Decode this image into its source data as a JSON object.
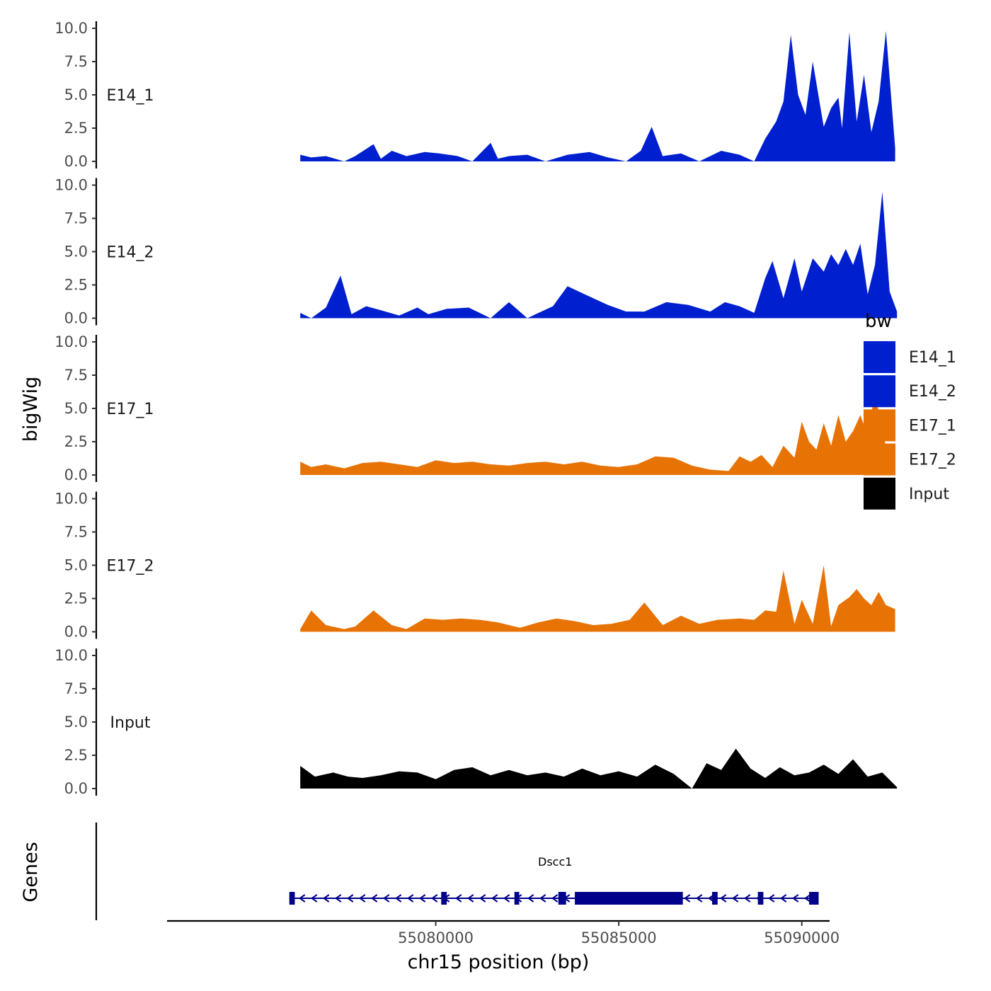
{
  "chart_data": {
    "type": "area",
    "ylabel": "bigWig",
    "xlabel": "chr15 position (bp)",
    "xlim": [
      55072660,
      55090760
    ],
    "data_range": [
      55076300,
      55092550
    ],
    "ylim": [
      0,
      10
    ],
    "yticks": [
      0,
      2.5,
      5,
      7.5,
      10
    ],
    "ytick_labels": [
      "0.0",
      "2.5",
      "5.0",
      "7.5",
      "10.0"
    ],
    "xticks": [
      55080000,
      55085000,
      55090000
    ],
    "xtick_labels": [
      "55080000",
      "55085000",
      "55090000"
    ],
    "tracks": [
      {
        "name": "E14_1",
        "color": "#0020D0",
        "x": [
          55076300,
          55076600,
          55077000,
          55077500,
          55077800,
          55078300,
          55078500,
          55078800,
          55079200,
          55079700,
          55080100,
          55080600,
          55081000,
          55081500,
          55081700,
          55082000,
          55082500,
          55083000,
          55083600,
          55084200,
          55084700,
          55085200,
          55085600,
          55085900,
          55086200,
          55086700,
          55087200,
          55087800,
          55088300,
          55088700,
          55089000,
          55089300,
          55089500,
          55089700,
          55089900,
          55090100,
          55090300,
          55090600,
          55090800,
          55091000,
          55091100,
          55091300,
          55091500,
          55091700,
          55091900,
          55092100,
          55092300,
          55092550
        ],
        "values": [
          0.5,
          0.3,
          0.4,
          0.0,
          0.4,
          1.3,
          0.2,
          0.8,
          0.4,
          0.7,
          0.6,
          0.4,
          0.0,
          1.4,
          0.2,
          0.4,
          0.5,
          0.0,
          0.5,
          0.7,
          0.3,
          0.0,
          0.8,
          2.6,
          0.4,
          0.6,
          0.0,
          0.8,
          0.5,
          0.0,
          1.7,
          3.0,
          4.5,
          9.5,
          5.0,
          3.5,
          7.5,
          2.6,
          4.0,
          4.8,
          2.5,
          9.7,
          3.0,
          6.5,
          2.2,
          4.5,
          9.8,
          1.0
        ]
      },
      {
        "name": "E14_2",
        "color": "#0020D0",
        "x": [
          55076300,
          55076600,
          55077000,
          55077400,
          55077700,
          55078100,
          55078500,
          55079000,
          55079500,
          55079800,
          55080300,
          55080900,
          55081500,
          55082000,
          55082500,
          55083200,
          55083600,
          55084300,
          55084700,
          55085200,
          55085700,
          55086300,
          55086900,
          55087500,
          55087900,
          55088300,
          55088700,
          55089000,
          55089200,
          55089500,
          55089800,
          55090000,
          55090300,
          55090600,
          55090800,
          55091000,
          55091200,
          55091400,
          55091600,
          55091800,
          55092000,
          55092200,
          55092400,
          55092600
        ],
        "values": [
          0.4,
          0.0,
          0.8,
          3.2,
          0.3,
          0.9,
          0.6,
          0.2,
          0.8,
          0.3,
          0.7,
          0.8,
          0.0,
          1.2,
          0.0,
          0.9,
          2.4,
          1.5,
          1.0,
          0.5,
          0.5,
          1.2,
          1.0,
          0.5,
          1.2,
          0.9,
          0.4,
          3.0,
          4.3,
          1.5,
          4.5,
          2.0,
          4.5,
          3.5,
          4.8,
          4.0,
          5.2,
          4.0,
          5.6,
          1.8,
          4.0,
          9.5,
          2.0,
          0.5
        ]
      },
      {
        "name": "E17_1",
        "color": "#E87305",
        "x": [
          55076300,
          55076600,
          55077000,
          55077500,
          55078000,
          55078500,
          55079000,
          55079500,
          55080000,
          55080500,
          55081000,
          55081500,
          55082000,
          55082500,
          55083000,
          55083500,
          55084000,
          55084500,
          55085000,
          55085500,
          55086000,
          55086500,
          55087000,
          55087500,
          55088000,
          55088300,
          55088600,
          55088900,
          55089200,
          55089500,
          55089800,
          55090000,
          55090200,
          55090400,
          55090600,
          55090800,
          55091000,
          55091200,
          55091400,
          55091600,
          55091800,
          55092000,
          55092200,
          55092400,
          55092550
        ],
        "values": [
          1.0,
          0.6,
          0.8,
          0.5,
          0.9,
          1.0,
          0.8,
          0.6,
          1.1,
          0.9,
          1.0,
          0.8,
          0.7,
          0.9,
          1.0,
          0.8,
          1.0,
          0.7,
          0.6,
          0.8,
          1.4,
          1.3,
          0.7,
          0.4,
          0.3,
          1.4,
          1.0,
          1.5,
          0.6,
          2.2,
          1.3,
          4.0,
          2.5,
          1.9,
          3.9,
          2.2,
          4.5,
          2.5,
          3.3,
          4.5,
          3.0,
          6.2,
          3.3,
          1.0,
          0.8
        ]
      },
      {
        "name": "E17_2",
        "color": "#E87305",
        "x": [
          55076300,
          55076600,
          55077000,
          55077500,
          55077800,
          55078300,
          55078800,
          55079200,
          55079700,
          55080200,
          55080700,
          55081200,
          55081700,
          55082300,
          55082800,
          55083300,
          55083800,
          55084300,
          55084800,
          55085300,
          55085700,
          55086200,
          55086700,
          55087200,
          55087700,
          55088300,
          55088700,
          55089000,
          55089300,
          55089500,
          55089800,
          55090000,
          55090300,
          55090600,
          55090800,
          55091000,
          55091300,
          55091500,
          55091700,
          55091900,
          55092100,
          55092300,
          55092550
        ],
        "values": [
          0.2,
          1.6,
          0.5,
          0.2,
          0.4,
          1.6,
          0.5,
          0.2,
          1.0,
          0.9,
          1.0,
          0.9,
          0.7,
          0.3,
          0.7,
          1.0,
          0.8,
          0.5,
          0.6,
          0.9,
          2.2,
          0.5,
          1.2,
          0.6,
          0.9,
          1.0,
          0.9,
          1.6,
          1.5,
          4.6,
          0.6,
          2.4,
          0.6,
          5.0,
          0.4,
          2.0,
          2.6,
          3.2,
          2.5,
          2.0,
          3.0,
          2.0,
          1.7
        ]
      },
      {
        "name": "Input",
        "color": "#000000",
        "x": [
          55076300,
          55076700,
          55077200,
          55077600,
          55078000,
          55078500,
          55079000,
          55079500,
          55080000,
          55080500,
          55081000,
          55081500,
          55082000,
          55082500,
          55083000,
          55083500,
          55084000,
          55084500,
          55085000,
          55085500,
          55086000,
          55086500,
          55087000,
          55087400,
          55087800,
          55088200,
          55088600,
          55089000,
          55089400,
          55089800,
          55090200,
          55090600,
          55091000,
          55091400,
          55091800,
          55092200,
          55092600
        ],
        "values": [
          1.7,
          0.9,
          1.2,
          0.9,
          0.8,
          1.0,
          1.3,
          1.2,
          0.7,
          1.4,
          1.6,
          1.0,
          1.4,
          1.0,
          1.2,
          0.9,
          1.5,
          1.0,
          1.3,
          0.9,
          1.8,
          1.1,
          0.0,
          1.9,
          1.4,
          3.0,
          1.5,
          0.8,
          1.6,
          1.0,
          1.2,
          1.8,
          1.1,
          2.2,
          0.9,
          1.2,
          0.1
        ]
      }
    ],
    "legend": {
      "title": "bw",
      "entries": [
        {
          "label": "E14_1",
          "color": "#0020D0"
        },
        {
          "label": "E14_2",
          "color": "#0020D0"
        },
        {
          "label": "E17_1",
          "color": "#E87305"
        },
        {
          "label": "E17_2",
          "color": "#E87305"
        },
        {
          "label": "Input",
          "color": "#000000"
        }
      ]
    },
    "genes": {
      "title": "Genes",
      "color": "#00008B",
      "items": [
        {
          "name": "Dscc1",
          "strand": "-",
          "start": 55076000,
          "end": 55090460,
          "exons": [
            [
              55076000,
              55076150
            ],
            [
              55080150,
              55080300
            ],
            [
              55082150,
              55082280
            ],
            [
              55083350,
              55083560
            ],
            [
              55083800,
              55086750
            ],
            [
              55087550,
              55087700
            ],
            [
              55088800,
              55088950
            ],
            [
              55090200,
              55090460
            ]
          ],
          "thick_exon": [
            55083800,
            55086750
          ]
        }
      ]
    }
  }
}
